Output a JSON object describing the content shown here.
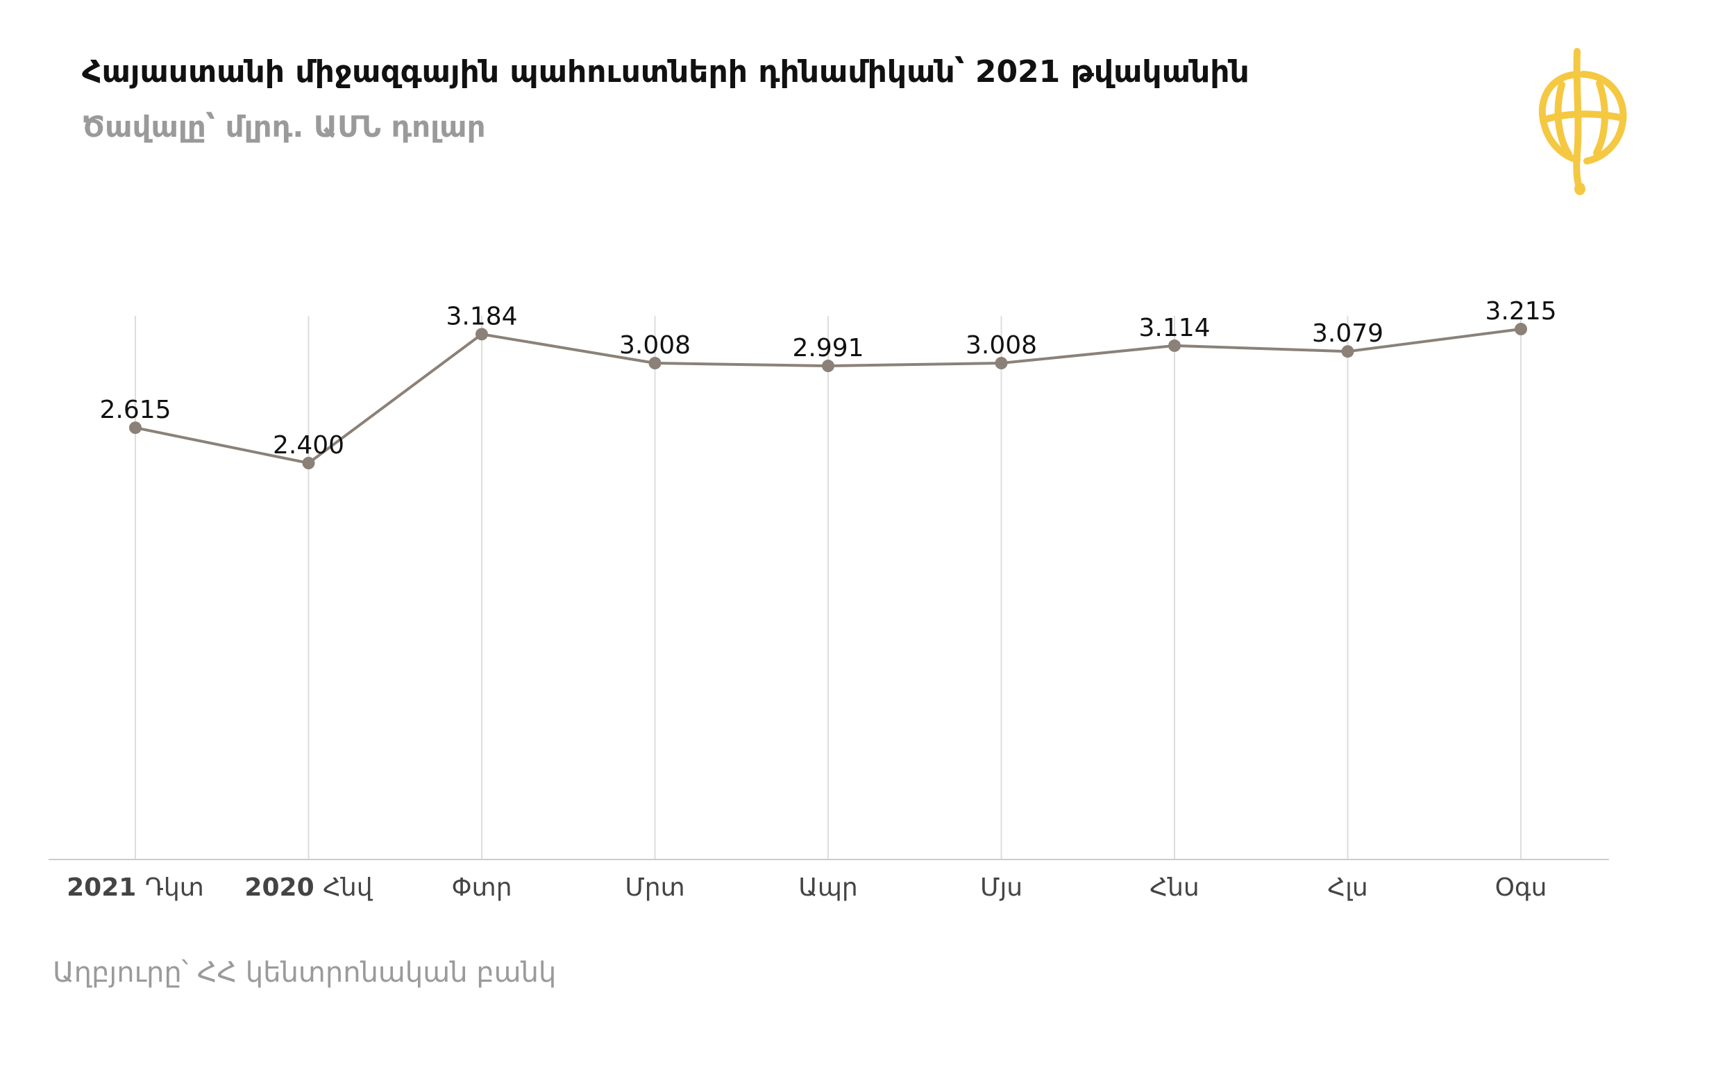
{
  "header": {
    "title": "Հայաստանի միջազգային պահուստների դինամիկան՝ 2021 թվականին",
    "subtitle": "Ծավալը՝ մլրդ. ԱՄՆ դոլար"
  },
  "footer": {
    "source": "Աղբյուրը՝ ՀՀ կենտրոնական բանկ"
  },
  "logo": {
    "icon": "globe-logo-icon",
    "color": "#f5c842"
  },
  "colors": {
    "line": "#8b8178",
    "point": "#8b8178",
    "grid": "#dddddd",
    "axis": "#cccccc"
  },
  "chart_data": {
    "type": "line",
    "title": "Հայաստանի միջազգային պահուստների դինամիկան՝ 2021 թվականին",
    "subtitle": "Ծավալը՝ մլրդ. ԱՄՆ դոլար",
    "xlabel": "",
    "ylabel": "",
    "categories": [
      {
        "year": "2021",
        "month": "Դկտ"
      },
      {
        "year": "2020",
        "month": "Հնվ"
      },
      {
        "year": "",
        "month": "Փտր"
      },
      {
        "year": "",
        "month": "Մրտ"
      },
      {
        "year": "",
        "month": "Ապր"
      },
      {
        "year": "",
        "month": "Մյս"
      },
      {
        "year": "",
        "month": "Հնս"
      },
      {
        "year": "",
        "month": "Հլս"
      },
      {
        "year": "",
        "month": "Օգս"
      }
    ],
    "value_labels": [
      "2.615",
      "2.400",
      "3.184",
      "3.008",
      "2.991",
      "3.008",
      "3.114",
      "3.079",
      "3.215"
    ],
    "values": [
      2.615,
      2.4,
      3.184,
      3.008,
      2.991,
      3.008,
      3.114,
      3.079,
      3.215
    ],
    "ylim": [
      0,
      5.3
    ],
    "grid": true,
    "grid_axis": "x",
    "legend": "none"
  }
}
